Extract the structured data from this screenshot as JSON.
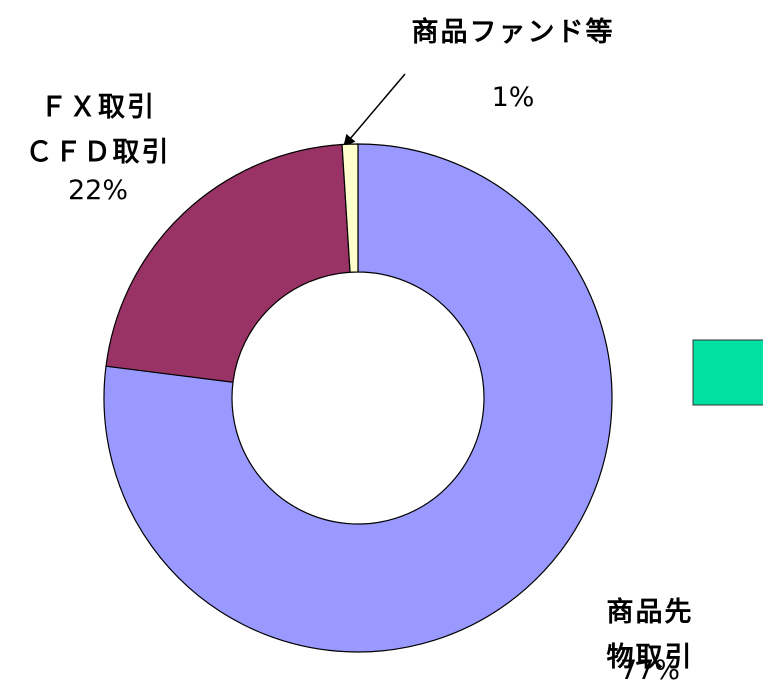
{
  "chart_data": {
    "type": "donut",
    "categories": [
      "商品先物取引",
      "ＦＸ取引\nＣＦＤ取引",
      "商品ファンド等"
    ],
    "values": [
      77,
      22,
      1
    ],
    "value_labels": [
      "77%",
      "22%",
      "1%"
    ],
    "colors": [
      "#9999ff",
      "#993366",
      "#ffffcc"
    ]
  }
}
